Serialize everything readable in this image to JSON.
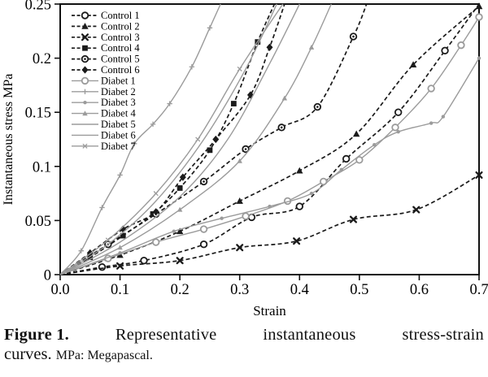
{
  "caption": {
    "label": "Figure 1.",
    "title_words": [
      "Representative",
      "instantaneous",
      "stress-strain"
    ],
    "title_tail": "curves.",
    "note": "MPa: Megapascal."
  },
  "chart_data": {
    "type": "line",
    "title": "",
    "xlabel": "Strain",
    "ylabel": "Instantaneous stress MPa",
    "xlim": [
      0,
      0.7
    ],
    "ylim": [
      0,
      0.25
    ],
    "x_ticks": [
      "0.0",
      "0.1",
      "0.2",
      "0.3",
      "0.4",
      "0.5",
      "0.6",
      "0.7"
    ],
    "y_ticks": [
      "0",
      "0.05",
      "0.1",
      "0.15",
      "0.2",
      "0.25"
    ],
    "grid": false,
    "legend_position": "top-left-inside",
    "colors": {
      "control": "#1b1b1b",
      "diabet": "#9b9b9b",
      "axis": "#111111"
    },
    "series": [
      {
        "name": "Control 1",
        "group": "control",
        "line": "dashed",
        "marker": "open-circle",
        "points": [
          [
            0,
            0
          ],
          [
            0.07,
            0.007
          ],
          [
            0.14,
            0.013
          ],
          [
            0.24,
            0.028
          ],
          [
            0.32,
            0.053
          ],
          [
            0.4,
            0.063
          ],
          [
            0.478,
            0.107
          ],
          [
            0.565,
            0.15
          ],
          [
            0.643,
            0.207
          ],
          [
            0.7,
            0.25
          ]
        ]
      },
      {
        "name": "Control 2",
        "group": "control",
        "line": "dashed",
        "marker": "filled-triangle",
        "points": [
          [
            0,
            0
          ],
          [
            0.1,
            0.018
          ],
          [
            0.2,
            0.04
          ],
          [
            0.3,
            0.068
          ],
          [
            0.4,
            0.096
          ],
          [
            0.495,
            0.13
          ],
          [
            0.59,
            0.194
          ],
          [
            0.7,
            0.248
          ]
        ]
      },
      {
        "name": "Control 3",
        "group": "control",
        "line": "dashed",
        "marker": "bold-x",
        "points": [
          [
            0,
            0
          ],
          [
            0.1,
            0.008
          ],
          [
            0.2,
            0.013
          ],
          [
            0.3,
            0.025
          ],
          [
            0.395,
            0.031
          ],
          [
            0.49,
            0.051
          ],
          [
            0.595,
            0.06
          ],
          [
            0.7,
            0.092
          ]
        ]
      },
      {
        "name": "Control 4",
        "group": "control",
        "line": "dashed",
        "marker": "filled-square",
        "points": [
          [
            0,
            0
          ],
          [
            0.05,
            0.016
          ],
          [
            0.105,
            0.036
          ],
          [
            0.155,
            0.056
          ],
          [
            0.2,
            0.08
          ],
          [
            0.25,
            0.115
          ],
          [
            0.29,
            0.158
          ],
          [
            0.33,
            0.215
          ],
          [
            0.358,
            0.25
          ]
        ]
      },
      {
        "name": "Control 5",
        "group": "control",
        "line": "dashed",
        "marker": "circle-dot",
        "points": [
          [
            0,
            0
          ],
          [
            0.08,
            0.028
          ],
          [
            0.16,
            0.056
          ],
          [
            0.24,
            0.086
          ],
          [
            0.31,
            0.116
          ],
          [
            0.37,
            0.136
          ],
          [
            0.43,
            0.155
          ],
          [
            0.49,
            0.22
          ],
          [
            0.512,
            0.25
          ]
        ]
      },
      {
        "name": "Control 6",
        "group": "control",
        "line": "dashed",
        "marker": "filled-diamond",
        "points": [
          [
            0,
            0
          ],
          [
            0.05,
            0.02
          ],
          [
            0.105,
            0.042
          ],
          [
            0.16,
            0.058
          ],
          [
            0.205,
            0.09
          ],
          [
            0.26,
            0.125
          ],
          [
            0.318,
            0.166
          ],
          [
            0.35,
            0.21
          ],
          [
            0.375,
            0.25
          ]
        ]
      },
      {
        "name": "Diabet 1",
        "group": "diabet",
        "line": "solid",
        "marker": "open-circle",
        "points": [
          [
            0,
            0
          ],
          [
            0.08,
            0.015
          ],
          [
            0.16,
            0.03
          ],
          [
            0.24,
            0.042
          ],
          [
            0.31,
            0.054
          ],
          [
            0.38,
            0.068
          ],
          [
            0.44,
            0.086
          ],
          [
            0.5,
            0.106
          ],
          [
            0.56,
            0.136
          ],
          [
            0.62,
            0.172
          ],
          [
            0.67,
            0.212
          ],
          [
            0.7,
            0.238
          ]
        ]
      },
      {
        "name": "Diabet 2",
        "group": "diabet",
        "line": "solid",
        "marker": "plus",
        "points": [
          [
            0,
            0
          ],
          [
            0.035,
            0.022
          ],
          [
            0.07,
            0.062
          ],
          [
            0.1,
            0.092
          ],
          [
            0.124,
            0.121
          ],
          [
            0.155,
            0.139
          ],
          [
            0.183,
            0.158
          ],
          [
            0.22,
            0.192
          ],
          [
            0.25,
            0.228
          ],
          [
            0.268,
            0.25
          ]
        ]
      },
      {
        "name": "Diabet 3",
        "group": "diabet",
        "line": "solid",
        "marker": "small-dot",
        "points": [
          [
            0,
            0
          ],
          [
            0.1,
            0.02
          ],
          [
            0.19,
            0.04
          ],
          [
            0.27,
            0.052
          ],
          [
            0.35,
            0.063
          ],
          [
            0.42,
            0.075
          ],
          [
            0.47,
            0.097
          ],
          [
            0.525,
            0.12
          ],
          [
            0.565,
            0.132
          ],
          [
            0.62,
            0.14
          ],
          [
            0.64,
            0.146
          ],
          [
            0.7,
            0.2
          ]
        ]
      },
      {
        "name": "Diabet 4",
        "group": "diabet",
        "line": "solid",
        "marker": "small-triangle",
        "points": [
          [
            0,
            0
          ],
          [
            0.1,
            0.025
          ],
          [
            0.2,
            0.06
          ],
          [
            0.3,
            0.105
          ],
          [
            0.375,
            0.163
          ],
          [
            0.42,
            0.21
          ],
          [
            0.453,
            0.25
          ]
        ]
      },
      {
        "name": "Diabet 5",
        "group": "diabet",
        "line": "solid",
        "marker": "none",
        "points": [
          [
            0,
            0
          ],
          [
            0.08,
            0.028
          ],
          [
            0.16,
            0.068
          ],
          [
            0.24,
            0.125
          ],
          [
            0.31,
            0.19
          ],
          [
            0.362,
            0.25
          ]
        ]
      },
      {
        "name": "Diabet 6",
        "group": "diabet",
        "line": "solid",
        "marker": "none",
        "points": [
          [
            0,
            0
          ],
          [
            0.1,
            0.03
          ],
          [
            0.2,
            0.072
          ],
          [
            0.28,
            0.125
          ],
          [
            0.35,
            0.195
          ],
          [
            0.4,
            0.25
          ]
        ]
      },
      {
        "name": "Diabet 7",
        "group": "diabet",
        "line": "solid",
        "marker": "small-x",
        "points": [
          [
            0,
            0
          ],
          [
            0.08,
            0.032
          ],
          [
            0.16,
            0.075
          ],
          [
            0.23,
            0.125
          ],
          [
            0.3,
            0.19
          ],
          [
            0.372,
            0.25
          ]
        ]
      }
    ]
  }
}
